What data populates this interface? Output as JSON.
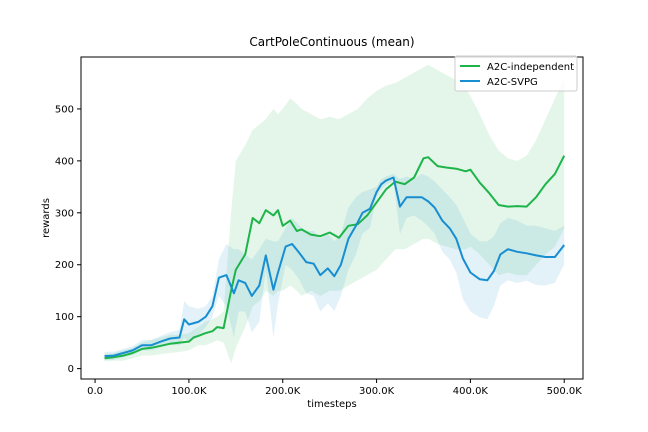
{
  "chart_data": {
    "type": "line",
    "title": "CartPoleContinuous (mean)",
    "xlabel": "timesteps",
    "ylabel": "rewards",
    "xlim": [
      -15000,
      520000
    ],
    "ylim": [
      -20,
      600
    ],
    "x_ticks": [
      0,
      100000,
      200000,
      300000,
      400000,
      500000
    ],
    "x_tick_labels": [
      "0.0",
      "100.0K",
      "200.0K",
      "300.0K",
      "400.0K",
      "500.0K"
    ],
    "y_ticks": [
      0,
      100,
      200,
      300,
      400,
      500
    ],
    "y_tick_labels": [
      "0",
      "100",
      "200",
      "300",
      "400",
      "500"
    ],
    "grid": false,
    "legend_position": "top-right",
    "series": [
      {
        "name": "A2C-independent",
        "color": "#1db44a",
        "x": [
          10000,
          20000,
          30000,
          40000,
          50000,
          60000,
          70000,
          80000,
          90000,
          100000,
          105000,
          110000,
          117000,
          125000,
          130000,
          137000,
          145000,
          150000,
          160000,
          168000,
          175000,
          182000,
          190000,
          195000,
          200000,
          208000,
          215000,
          220000,
          230000,
          240000,
          250000,
          260000,
          270000,
          280000,
          290000,
          300000,
          310000,
          320000,
          330000,
          340000,
          350000,
          355000,
          365000,
          375000,
          385000,
          395000,
          400000,
          410000,
          420000,
          430000,
          440000,
          450000,
          460000,
          470000,
          480000,
          490000,
          500000
        ],
        "y": [
          20,
          22,
          25,
          30,
          38,
          40,
          44,
          48,
          50,
          52,
          60,
          63,
          68,
          72,
          80,
          78,
          150,
          190,
          220,
          290,
          280,
          305,
          295,
          305,
          275,
          285,
          265,
          268,
          258,
          255,
          262,
          252,
          275,
          278,
          295,
          320,
          345,
          360,
          355,
          368,
          405,
          407,
          390,
          387,
          385,
          380,
          383,
          358,
          338,
          315,
          312,
          313,
          312,
          330,
          355,
          375,
          410
        ],
        "band_upper": [
          28,
          30,
          35,
          40,
          50,
          55,
          60,
          65,
          65,
          68,
          75,
          80,
          90,
          95,
          100,
          110,
          300,
          400,
          430,
          460,
          470,
          480,
          500,
          490,
          500,
          520,
          510,
          500,
          490,
          480,
          485,
          480,
          490,
          500,
          520,
          535,
          545,
          550,
          560,
          570,
          580,
          585,
          575,
          565,
          555,
          540,
          525,
          490,
          450,
          420,
          405,
          400,
          410,
          440,
          480,
          520,
          560
        ],
        "band_lower": [
          14,
          15,
          15,
          20,
          25,
          25,
          28,
          30,
          32,
          35,
          40,
          45,
          45,
          50,
          55,
          50,
          10,
          40,
          80,
          120,
          130,
          150,
          140,
          150,
          150,
          160,
          150,
          140,
          150,
          140,
          150,
          150,
          160,
          170,
          180,
          190,
          210,
          230,
          230,
          240,
          250,
          250,
          240,
          235,
          230,
          230,
          235,
          220,
          200,
          180,
          185,
          180,
          180,
          200,
          220,
          235,
          270
        ]
      },
      {
        "name": "A2C-SVPG",
        "color": "#178ed1",
        "x": [
          10000,
          20000,
          30000,
          40000,
          50000,
          60000,
          70000,
          80000,
          90000,
          95000,
          100000,
          110000,
          118000,
          125000,
          132000,
          140000,
          148000,
          153000,
          160000,
          167000,
          175000,
          182000,
          190000,
          195000,
          203000,
          210000,
          218000,
          225000,
          233000,
          240000,
          248000,
          255000,
          262000,
          270000,
          278000,
          285000,
          293000,
          300000,
          305000,
          310000,
          318000,
          325000,
          332000,
          340000,
          348000,
          355000,
          362000,
          370000,
          378000,
          385000,
          392000,
          400000,
          410000,
          418000,
          425000,
          432000,
          440000,
          450000,
          460000,
          470000,
          480000,
          490000,
          500000
        ],
        "y": [
          24,
          25,
          30,
          35,
          45,
          45,
          52,
          58,
          60,
          95,
          85,
          90,
          100,
          120,
          175,
          180,
          145,
          170,
          165,
          140,
          160,
          218,
          152,
          185,
          235,
          240,
          222,
          205,
          202,
          180,
          193,
          178,
          200,
          250,
          275,
          300,
          308,
          340,
          355,
          362,
          368,
          312,
          330,
          330,
          330,
          322,
          310,
          285,
          270,
          250,
          212,
          185,
          172,
          170,
          188,
          220,
          230,
          225,
          222,
          218,
          215,
          215,
          238
        ],
        "band_upper": [
          32,
          33,
          38,
          43,
          55,
          55,
          63,
          70,
          75,
          130,
          120,
          115,
          120,
          140,
          210,
          240,
          230,
          230,
          220,
          210,
          230,
          250,
          245,
          245,
          270,
          290,
          275,
          265,
          265,
          250,
          260,
          245,
          260,
          310,
          330,
          340,
          345,
          350,
          365,
          370,
          375,
          365,
          370,
          365,
          375,
          370,
          360,
          345,
          330,
          315,
          290,
          260,
          245,
          245,
          255,
          280,
          290,
          285,
          275,
          275,
          270,
          265,
          275
        ],
        "band_lower": [
          16,
          17,
          22,
          27,
          35,
          35,
          41,
          46,
          45,
          60,
          50,
          65,
          80,
          100,
          140,
          120,
          60,
          110,
          110,
          70,
          90,
          190,
          60,
          125,
          200,
          190,
          170,
          145,
          140,
          110,
          126,
          111,
          140,
          190,
          220,
          260,
          271,
          330,
          345,
          354,
          361,
          259,
          290,
          295,
          285,
          274,
          260,
          225,
          210,
          185,
          134,
          110,
          99,
          95,
          121,
          160,
          170,
          165,
          169,
          161,
          160,
          165,
          201
        ]
      }
    ]
  }
}
